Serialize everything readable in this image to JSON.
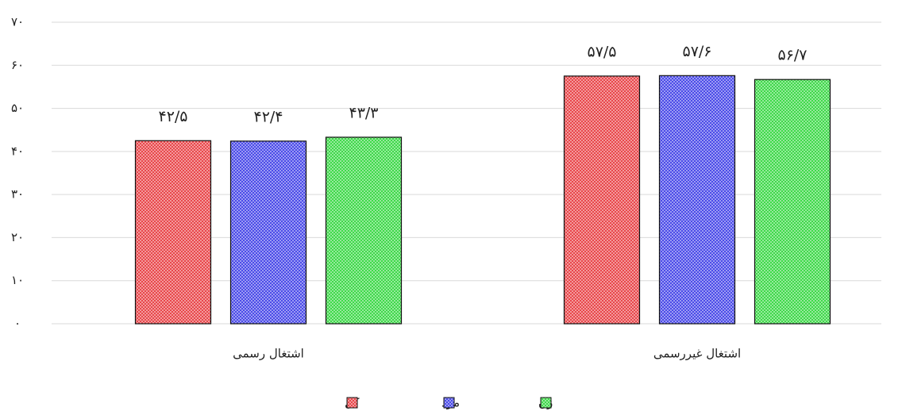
{
  "chart_data": {
    "type": "bar",
    "categories": [
      "اشتغال رسمی",
      "اشتغال غیررسمی"
    ],
    "series": [
      {
        "name": "کل",
        "color": "#e8474b",
        "values": [
          42.5,
          57.5
        ],
        "value_labels": [
          "۴۲/۵",
          "۵۷/۵"
        ]
      },
      {
        "name": "مرد",
        "color": "#4b4be8",
        "values": [
          42.4,
          57.6
        ],
        "value_labels": [
          "۴۲/۴",
          "۵۷/۶"
        ]
      },
      {
        "name": "زن",
        "color": "#3fd94a",
        "values": [
          43.3,
          56.7
        ],
        "value_labels": [
          "۴۳/۳",
          "۵۶/۷"
        ]
      }
    ],
    "ylim": [
      0,
      70
    ],
    "yticks": [
      {
        "value": 0,
        "label": "۰"
      },
      {
        "value": 10,
        "label": "۱۰"
      },
      {
        "value": 20,
        "label": "۲۰"
      },
      {
        "value": 30,
        "label": "۳۰"
      },
      {
        "value": 40,
        "label": "۴۰"
      },
      {
        "value": 50,
        "label": "۵۰"
      },
      {
        "value": 60,
        "label": "۶۰"
      },
      {
        "value": 70,
        "label": "۷۰"
      }
    ],
    "grid": true,
    "legend": "bottom"
  }
}
